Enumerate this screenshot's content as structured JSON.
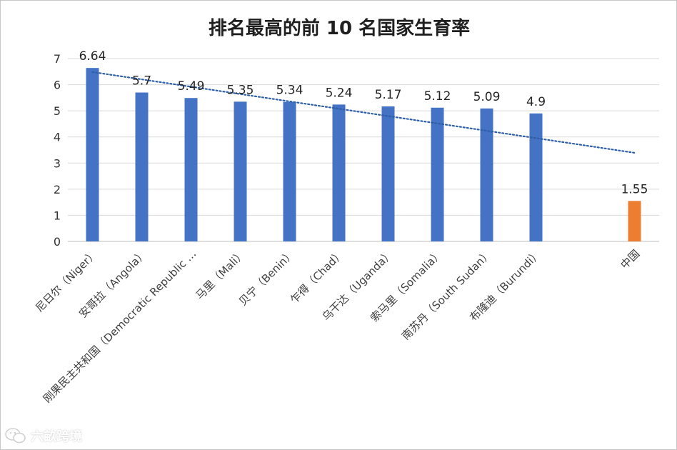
{
  "chart_data": {
    "type": "bar",
    "title": "排名最高的前 10 名国家生育率",
    "categories": [
      "尼日尔（Niger）",
      "安哥拉（Angola）",
      "刚果民主共和国（Democratic Republic …",
      "马里（Mali）",
      "贝宁（Benin）",
      "乍得（Chad）",
      "乌干达（Uganda）",
      "索马里（Somalia）",
      "南苏丹（South Sudan）",
      "布隆迪（Burundi）",
      "",
      "中国"
    ],
    "values": [
      6.64,
      5.7,
      5.49,
      5.35,
      5.34,
      5.24,
      5.17,
      5.12,
      5.09,
      4.9,
      null,
      1.55
    ],
    "data_labels": [
      "6.64",
      "5.7",
      "5.49",
      "5.35",
      "5.34",
      "5.24",
      "5.17",
      "5.12",
      "5.09",
      "4.9",
      "",
      "1.55"
    ],
    "bar_colors": [
      "#4472c4",
      "#4472c4",
      "#4472c4",
      "#4472c4",
      "#4472c4",
      "#4472c4",
      "#4472c4",
      "#4472c4",
      "#4472c4",
      "#4472c4",
      "#4472c4",
      "#ed7d31"
    ],
    "ylim": [
      0,
      7
    ],
    "yticks": [
      0,
      1,
      2,
      3,
      4,
      5,
      6,
      7
    ],
    "xlabel": "",
    "ylabel": "",
    "grid": true,
    "trendline": {
      "type": "linear",
      "style": "dotted",
      "color": "#2e5fa8",
      "applies_to": "all bars"
    }
  },
  "watermark": {
    "text": "六畝跨境",
    "icon": "wechat-icon"
  }
}
